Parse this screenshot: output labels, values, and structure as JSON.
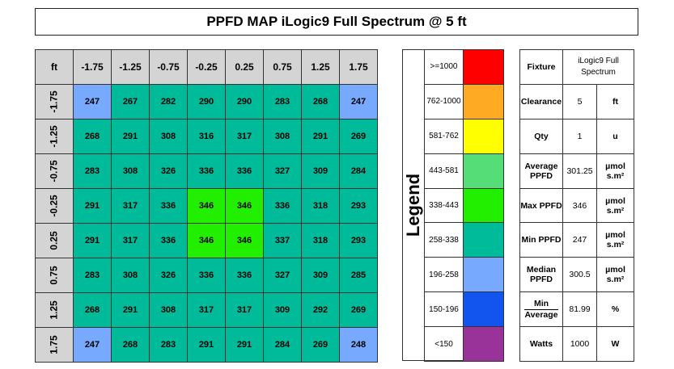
{
  "title": "PPFD MAP iLogic9 Full Spectrum @ 5 ft",
  "chart_data": {
    "type": "heatmap",
    "title": "PPFD MAP iLogic9 Full Spectrum @ 5 ft",
    "corner_label": "ft",
    "x": [
      "-1.75",
      "-1.25",
      "-0.75",
      "-0.25",
      "0.25",
      "0.75",
      "1.25",
      "1.75"
    ],
    "y": [
      "-1.75",
      "-1.25",
      "-0.75",
      "-0.25",
      "0.25",
      "0.75",
      "1.25",
      "1.75"
    ],
    "values": [
      [
        247,
        267,
        282,
        290,
        290,
        283,
        268,
        247
      ],
      [
        268,
        291,
        308,
        316,
        317,
        308,
        291,
        269
      ],
      [
        283,
        308,
        326,
        336,
        336,
        327,
        309,
        284
      ],
      [
        291,
        317,
        336,
        346,
        346,
        336,
        318,
        293
      ],
      [
        291,
        317,
        336,
        346,
        346,
        337,
        318,
        293
      ],
      [
        283,
        308,
        326,
        336,
        336,
        327,
        309,
        285
      ],
      [
        268,
        291,
        308,
        317,
        317,
        309,
        292,
        269
      ],
      [
        247,
        268,
        283,
        291,
        291,
        284,
        269,
        248
      ]
    ]
  },
  "legend": {
    "title": "Legend",
    "items": [
      {
        "label": ">=1000",
        "min": 1000,
        "max": 99999,
        "color": "#ff0000"
      },
      {
        "label": "762-1000",
        "min": 762,
        "max": 1000,
        "color": "#ffaa22"
      },
      {
        "label": "581-762",
        "min": 581,
        "max": 762,
        "color": "#ffff00"
      },
      {
        "label": "443-581",
        "min": 443,
        "max": 581,
        "color": "#55dd77"
      },
      {
        "label": "338-443",
        "min": 338,
        "max": 443,
        "color": "#22ee00"
      },
      {
        "label": "258-338",
        "min": 258,
        "max": 338,
        "color": "#00bb99"
      },
      {
        "label": "196-258",
        "min": 196,
        "max": 258,
        "color": "#77aaff"
      },
      {
        "label": "150-196",
        "min": 150,
        "max": 196,
        "color": "#1155ee"
      },
      {
        "label": "<150",
        "min": 0,
        "max": 150,
        "color": "#993399"
      }
    ]
  },
  "info": [
    {
      "key": "Fixture",
      "value": "iLogic9 Full Spectrum",
      "unit": ""
    },
    {
      "key": "Clearance",
      "value": "5",
      "unit": "ft"
    },
    {
      "key": "Qty",
      "value": "1",
      "unit": "u"
    },
    {
      "key": "Average PPFD",
      "value": "301.25",
      "unit": "µmol s.m²"
    },
    {
      "key": "Max PPFD",
      "value": "346",
      "unit": "µmol s.m²"
    },
    {
      "key": "Min PPFD",
      "value": "247",
      "unit": "µmol s.m²"
    },
    {
      "key": "Median PPFD",
      "value": "300.5",
      "unit": "µmol s.m²"
    },
    {
      "key_top": "Min",
      "key_bottom": "Average",
      "value": "81.99",
      "unit": "%"
    },
    {
      "key": "Watts",
      "value": "1000",
      "unit": "W"
    }
  ]
}
